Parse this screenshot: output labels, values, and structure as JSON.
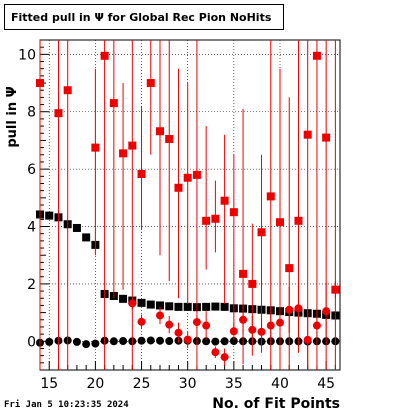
{
  "title": "Fitted pull in  Ψ  for Global Rec Pion NoHits",
  "footer": {
    "timestamp": "Fri Jan  5 10:23:35 2024"
  },
  "chart_data": {
    "type": "scatter",
    "title": "Fitted pull in  Ψ  for Global Rec Pion NoHits",
    "xlabel": "No. of Fit Points",
    "ylabel": "pull in  Ψ",
    "xlim": [
      14,
      46.5
    ],
    "ylim": [
      -1,
      10.5
    ],
    "grid": true,
    "xticks": [
      15,
      20,
      25,
      30,
      35,
      40,
      45
    ],
    "yticks": [
      0,
      2,
      4,
      6,
      8,
      10
    ],
    "series": [
      {
        "marker": "square",
        "color": "#000000",
        "x": [
          14,
          15,
          16,
          17,
          18,
          19,
          20,
          21,
          22,
          23,
          24,
          25,
          26,
          27,
          28,
          29,
          30,
          31,
          32,
          33,
          34,
          35,
          36,
          37,
          38,
          39,
          40,
          41,
          42,
          43,
          44,
          45,
          46
        ],
        "y": [
          4.42,
          4.38,
          4.32,
          4.08,
          3.95,
          3.62,
          3.36,
          1.65,
          1.58,
          1.48,
          1.42,
          1.34,
          1.28,
          1.25,
          1.22,
          1.2,
          1.2,
          1.19,
          1.2,
          1.21,
          1.2,
          1.15,
          1.14,
          1.12,
          1.1,
          1.08,
          1.05,
          1.02,
          1.0,
          0.98,
          0.96,
          0.92,
          0.9
        ],
        "yerr": [
          0.1,
          0.09,
          0.08,
          0.07,
          0.06,
          0.05,
          0.05,
          0.04,
          0.04,
          0.03,
          0.03,
          0.03,
          0.03,
          0.03,
          0.03,
          0.03,
          0.03,
          0.03,
          0.03,
          0.03,
          0.03,
          0.03,
          0.03,
          0.03,
          0.03,
          0.03,
          0.03,
          0.03,
          0.03,
          0.03,
          0.03,
          0.03,
          0.03
        ]
      },
      {
        "marker": "circle",
        "color": "#000000",
        "x": [
          14,
          15,
          16,
          17,
          18,
          19,
          20,
          21,
          22,
          23,
          24,
          25,
          26,
          27,
          28,
          29,
          30,
          31,
          32,
          33,
          34,
          35,
          36,
          37,
          38,
          39,
          40,
          41,
          42,
          43,
          44,
          45,
          46
        ],
        "y": [
          -0.05,
          -0.02,
          0.02,
          0.03,
          -0.02,
          -0.1,
          -0.08,
          0.02,
          0.0,
          0.01,
          0.0,
          0.02,
          0.03,
          0.02,
          0.01,
          0.02,
          0.02,
          0.01,
          0.0,
          -0.01,
          0.0,
          0.01,
          0.0,
          0.0,
          -0.01,
          0.0,
          0.0,
          0.0,
          0.0,
          -0.01,
          0.0,
          0.0,
          0.0
        ],
        "yerr": [
          0.05,
          0.04,
          0.03,
          0.03,
          0.03,
          0.03,
          0.03,
          0.02,
          0.02,
          0.02,
          0.02,
          0.02,
          0.02,
          0.02,
          0.02,
          0.02,
          0.02,
          0.02,
          0.02,
          0.02,
          0.02,
          0.02,
          0.02,
          0.02,
          0.02,
          0.02,
          0.02,
          0.02,
          0.02,
          0.02,
          0.02,
          0.02,
          0.02
        ]
      },
      {
        "marker": "square",
        "color": "#ee0000",
        "x": [
          14,
          16,
          17,
          20,
          21,
          22,
          23,
          24,
          25,
          26,
          27,
          28,
          29,
          30,
          31,
          32,
          33,
          34,
          35,
          36,
          37,
          38,
          39,
          40,
          41,
          42,
          43,
          44,
          45,
          46
        ],
        "y": [
          9.0,
          7.95,
          8.75,
          6.75,
          9.95,
          8.3,
          6.55,
          6.82,
          5.83,
          9.0,
          7.32,
          7.05,
          5.35,
          5.7,
          5.8,
          4.2,
          4.27,
          4.9,
          4.5,
          2.35,
          2.0,
          3.8,
          5.05,
          4.15,
          2.55,
          4.2,
          7.2,
          9.95,
          7.1,
          1.8
        ],
        "ylo": [
          -1,
          -1,
          -1,
          3.0,
          -1,
          1.5,
          1.8,
          -1,
          3.9,
          6.5,
          3.0,
          2.1,
          1.5,
          1.3,
          -1,
          2.5,
          3.1,
          1.3,
          0.4,
          -0.8,
          -0.5,
          -0.4,
          -1,
          -1,
          -1,
          -0.4,
          -1,
          -1,
          -1,
          -1
        ],
        "yhi": [
          10.5,
          10.5,
          10.5,
          9.5,
          10.5,
          10.5,
          9.0,
          10.5,
          8.2,
          10.5,
          10.5,
          10.5,
          9.5,
          9.0,
          10.5,
          7.5,
          5.6,
          7.2,
          6.5,
          8.1,
          4.1,
          6.5,
          10.5,
          9.5,
          8.5,
          10.5,
          10.5,
          10.5,
          10.5,
          10.5
        ]
      },
      {
        "marker": "circle",
        "color": "#ee0000",
        "x": [
          24,
          25,
          27,
          28,
          29,
          30,
          31,
          32,
          33,
          34,
          35,
          36,
          37,
          38,
          39,
          40,
          41,
          42,
          43,
          44,
          45,
          46
        ],
        "y": [
          1.32,
          0.68,
          0.9,
          0.58,
          0.3,
          0.06,
          0.67,
          0.55,
          -0.38,
          -0.55,
          0.35,
          0.75,
          0.4,
          0.33,
          0.55,
          0.65,
          1.1,
          1.15,
          0.05,
          0.55,
          1.05,
          1.8
        ],
        "yerr": [
          0.2,
          0.25,
          0.3,
          0.3,
          0.35,
          0.3,
          0.2,
          0.5,
          0.2,
          0.3,
          0.3,
          0.5,
          0.5,
          0.5,
          0.6,
          0.7,
          0.8,
          0.9,
          1.0,
          0.5,
          1.0,
          0.3
        ]
      }
    ]
  }
}
